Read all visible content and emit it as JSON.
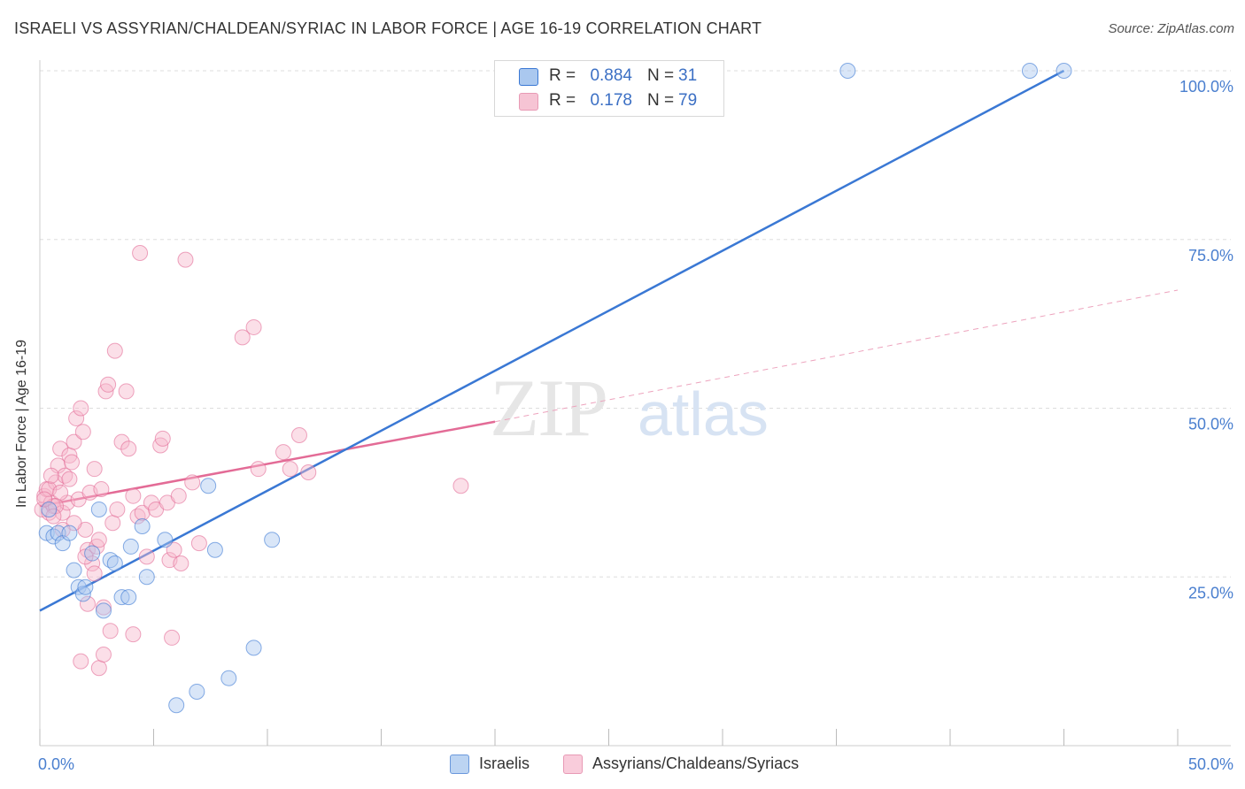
{
  "title": "ISRAELI VS ASSYRIAN/CHALDEAN/SYRIAC IN LABOR FORCE | AGE 16-19 CORRELATION CHART",
  "source": "Source: ZipAtlas.com",
  "watermark": {
    "zip": "ZIP",
    "atlas": "atlas"
  },
  "colors": {
    "blue": "#3a78d4",
    "blue_fill": "#aac8ef",
    "pink": "#e36b96",
    "pink_fill": "#f6b8cc",
    "grid": "#dddddd",
    "axis_text": "#4a7fcf"
  },
  "legend_top": [
    {
      "r_label": "R =",
      "r_value": "0.884",
      "n_label": "N =",
      "n_value": "31"
    },
    {
      "r_label": "R =",
      "r_value": "0.178",
      "n_label": "N =",
      "n_value": "79"
    }
  ],
  "legend_bottom": [
    "Israelis",
    "Assyrians/Chaldeans/Syriacs"
  ],
  "chart_data": {
    "type": "scatter",
    "title": "ISRAELI VS ASSYRIAN/CHALDEAN/SYRIAC IN LABOR FORCE | AGE 16-19 CORRELATION CHART",
    "xlabel": "",
    "ylabel": "In Labor Force | Age 16-19",
    "xlim": [
      0,
      50
    ],
    "ylim": [
      0,
      105
    ],
    "x_tick_labels": [
      "0.0%",
      "50.0%"
    ],
    "y_ticks": [
      25,
      50,
      75,
      100
    ],
    "y_tick_labels": [
      "25.0%",
      "50.0%",
      "75.0%",
      "100.0%"
    ],
    "series": [
      {
        "name": "Israelis",
        "r": 0.884,
        "n": 31,
        "trend": {
          "x0": 0,
          "y0": 20,
          "x1": 45,
          "y1": 100
        },
        "points": [
          [
            0.3,
            31.5
          ],
          [
            0.6,
            31.0
          ],
          [
            0.8,
            31.5
          ],
          [
            1.0,
            30.0
          ],
          [
            1.3,
            31.5
          ],
          [
            1.5,
            26.0
          ],
          [
            1.7,
            23.5
          ],
          [
            1.9,
            22.5
          ],
          [
            2.0,
            23.5
          ],
          [
            2.3,
            28.5
          ],
          [
            2.6,
            35.0
          ],
          [
            2.8,
            20.0
          ],
          [
            3.1,
            27.5
          ],
          [
            3.3,
            27.0
          ],
          [
            3.6,
            22.0
          ],
          [
            3.9,
            22.0
          ],
          [
            4.0,
            29.5
          ],
          [
            4.5,
            32.5
          ],
          [
            4.7,
            25.0
          ],
          [
            5.5,
            30.5
          ],
          [
            6.0,
            6.0
          ],
          [
            6.9,
            8.0
          ],
          [
            7.4,
            38.5
          ],
          [
            7.7,
            29.0
          ],
          [
            8.3,
            10.0
          ],
          [
            9.4,
            14.5
          ],
          [
            10.2,
            30.5
          ],
          [
            35.5,
            100.0
          ],
          [
            43.5,
            100.0
          ],
          [
            45.0,
            100.0
          ],
          [
            0.4,
            35.0
          ]
        ]
      },
      {
        "name": "Assyrians/Chaldeans/Syriacs",
        "r": 0.178,
        "n": 79,
        "trend": {
          "x0": 0,
          "y0": 35.5,
          "x1": 20,
          "y1": 48
        },
        "trend_ext": {
          "x0": 20,
          "y0": 48,
          "x1": 50,
          "y1": 67.5
        },
        "points": [
          [
            0.1,
            35.0
          ],
          [
            0.2,
            37.0
          ],
          [
            0.3,
            38.0
          ],
          [
            0.4,
            34.5
          ],
          [
            0.5,
            36.0
          ],
          [
            0.6,
            35.5
          ],
          [
            0.7,
            39.0
          ],
          [
            0.8,
            41.5
          ],
          [
            0.9,
            44.0
          ],
          [
            1.0,
            34.5
          ],
          [
            1.1,
            40.0
          ],
          [
            1.2,
            36.0
          ],
          [
            1.3,
            43.0
          ],
          [
            1.4,
            42.0
          ],
          [
            1.5,
            45.0
          ],
          [
            1.6,
            48.5
          ],
          [
            1.7,
            36.5
          ],
          [
            1.8,
            50.0
          ],
          [
            1.9,
            46.5
          ],
          [
            2.0,
            32.0
          ],
          [
            2.1,
            29.0
          ],
          [
            2.2,
            37.5
          ],
          [
            2.3,
            27.0
          ],
          [
            2.4,
            25.5
          ],
          [
            2.5,
            29.5
          ],
          [
            2.6,
            30.5
          ],
          [
            2.7,
            38.0
          ],
          [
            2.8,
            20.5
          ],
          [
            2.9,
            52.5
          ],
          [
            3.0,
            53.5
          ],
          [
            3.1,
            17.0
          ],
          [
            3.2,
            33.0
          ],
          [
            3.3,
            58.5
          ],
          [
            3.4,
            35.0
          ],
          [
            3.6,
            45.0
          ],
          [
            3.8,
            52.5
          ],
          [
            3.9,
            44.0
          ],
          [
            4.1,
            16.5
          ],
          [
            4.3,
            34.0
          ],
          [
            4.4,
            73.0
          ],
          [
            4.5,
            34.5
          ],
          [
            4.7,
            28.0
          ],
          [
            4.9,
            36.0
          ],
          [
            5.1,
            35.0
          ],
          [
            5.3,
            44.5
          ],
          [
            5.4,
            45.5
          ],
          [
            5.6,
            36.0
          ],
          [
            5.7,
            27.5
          ],
          [
            5.8,
            16.0
          ],
          [
            5.9,
            29.0
          ],
          [
            6.1,
            37.0
          ],
          [
            6.2,
            27.0
          ],
          [
            6.4,
            72.0
          ],
          [
            6.7,
            39.0
          ],
          [
            7.0,
            30.0
          ],
          [
            8.9,
            60.5
          ],
          [
            9.4,
            62.0
          ],
          [
            9.6,
            41.0
          ],
          [
            10.7,
            43.5
          ],
          [
            11.0,
            41.0
          ],
          [
            11.4,
            46.0
          ],
          [
            11.8,
            40.5
          ],
          [
            18.5,
            38.5
          ],
          [
            1.8,
            12.5
          ],
          [
            2.6,
            11.5
          ],
          [
            2.8,
            13.5
          ],
          [
            2.1,
            21.0
          ],
          [
            0.4,
            38.0
          ],
          [
            0.5,
            40.0
          ],
          [
            0.9,
            37.5
          ],
          [
            1.3,
            39.5
          ],
          [
            1.5,
            33.0
          ],
          [
            2.4,
            41.0
          ],
          [
            0.7,
            35.5
          ],
          [
            0.2,
            36.5
          ],
          [
            0.6,
            34.0
          ],
          [
            2.0,
            28.0
          ],
          [
            1.0,
            32.0
          ],
          [
            4.1,
            37.0
          ]
        ]
      }
    ]
  }
}
